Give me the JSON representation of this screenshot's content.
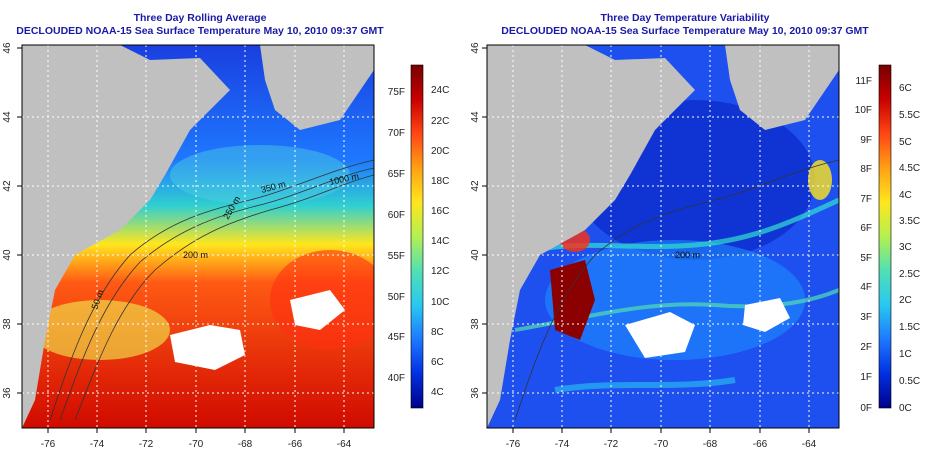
{
  "left_panel": {
    "title": "Three Day Rolling Average",
    "subtitle": "DECLOUDED NOAA-15 Sea Surface Temperature May 10, 2010 09:37 GMT",
    "x_ticks": [
      "-76",
      "-74",
      "-72",
      "-70",
      "-68",
      "-66",
      "-64"
    ],
    "y_ticks": [
      "36",
      "38",
      "40",
      "42",
      "44",
      "46"
    ],
    "contour_labels": [
      "1000 m",
      "350 m",
      "250 m",
      "200 m",
      "50 m"
    ],
    "colorbar_f": [
      "75F",
      "70F",
      "65F",
      "60F",
      "55F",
      "50F",
      "45F",
      "40F"
    ],
    "colorbar_c": [
      "24C",
      "22C",
      "20C",
      "18C",
      "16C",
      "14C",
      "12C",
      "10C",
      "8C",
      "6C",
      "4C"
    ],
    "colormap": [
      "#00008b",
      "#0030e0",
      "#1e78ff",
      "#28c8f0",
      "#50e0b4",
      "#b4f050",
      "#ffe61e",
      "#ffa014",
      "#ff4614",
      "#c80000",
      "#780000"
    ]
  },
  "right_panel": {
    "title": "Three Day Temperature Variability",
    "subtitle": "DECLOUDED NOAA-15 Sea Surface Temperature May 10, 2010 09:37 GMT",
    "x_ticks": [
      "-76",
      "-74",
      "-72",
      "-70",
      "-68",
      "-66",
      "-64"
    ],
    "y_ticks": [
      "36",
      "38",
      "40",
      "42",
      "44",
      "46"
    ],
    "contour_labels": [
      "200 m"
    ],
    "colorbar_f": [
      "11F",
      "10F",
      "9F",
      "8F",
      "7F",
      "6F",
      "5F",
      "4F",
      "3F",
      "2F",
      "1F",
      "0F"
    ],
    "colorbar_c": [
      "6C",
      "5.5C",
      "5C",
      "4.5C",
      "4C",
      "3.5C",
      "3C",
      "2.5C",
      "2C",
      "1.5C",
      "1C",
      "0.5C",
      "0C"
    ],
    "colormap": [
      "#00008b",
      "#0030e0",
      "#1e78ff",
      "#28c8f0",
      "#50e0b4",
      "#b4f050",
      "#ffe61e",
      "#ffa014",
      "#ff4614",
      "#c80000",
      "#780000"
    ]
  },
  "colors": {
    "title": "#1a1aa6",
    "land": "#c0c0c0",
    "grid": "#ffffff"
  }
}
